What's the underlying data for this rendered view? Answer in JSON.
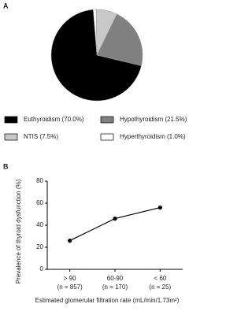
{
  "chart_data": [
    {
      "type": "pie",
      "panel_label": "A",
      "series": [
        {
          "name": "Euthyroidism (70.0%)",
          "color": "#000000",
          "value": 70.0
        },
        {
          "name": "Hypothyroidism (21.5%)",
          "color": "#808080",
          "value": 21.5
        },
        {
          "name": "NTIS (7.5%)",
          "color": "#c8c8c8",
          "value": 7.5
        },
        {
          "name": "Hyperthyroidism (1.0%)",
          "color": "#ffffff",
          "value": 1.0
        }
      ]
    },
    {
      "type": "line",
      "panel_label": "B",
      "categories": [
        "> 90",
        "60-90",
        "< 60"
      ],
      "category_sublabels": [
        "(n = 857)",
        "(n = 170)",
        "(n = 25)"
      ],
      "values": [
        26,
        46,
        56
      ],
      "color": "#000000",
      "ylim": [
        0,
        80
      ],
      "yticks": [
        0,
        20,
        40,
        60,
        80
      ],
      "y_label": "Prevalence of thyroid dysfunction (%)",
      "x_label": "Estimated glomerular filtration rate (mL/min/1.73m²)"
    }
  ]
}
